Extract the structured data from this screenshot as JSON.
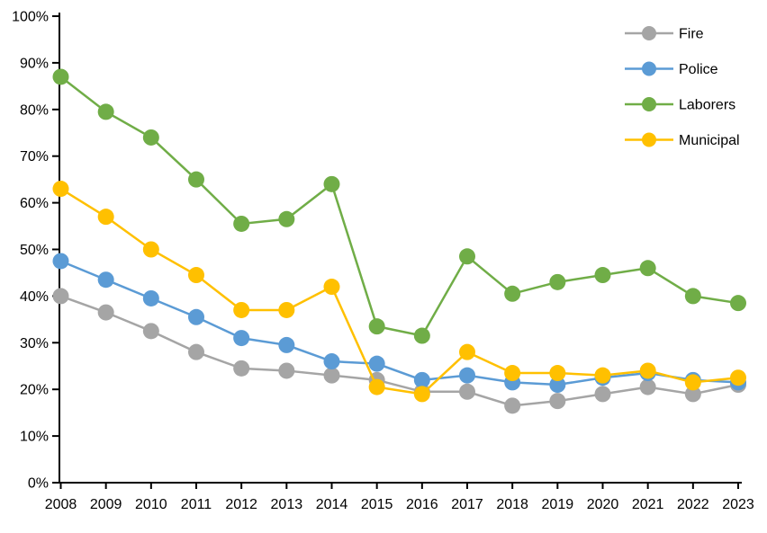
{
  "chart_data": {
    "type": "line",
    "title": "",
    "xlabel": "",
    "ylabel": "",
    "x_categories": [
      "2008",
      "2009",
      "2010",
      "2011",
      "2012",
      "2013",
      "2014",
      "2015",
      "2016",
      "2017",
      "2018",
      "2019",
      "2020",
      "2021",
      "2022",
      "2023"
    ],
    "series": [
      {
        "name": "Fire",
        "color": "#A5A5A5",
        "values": [
          40,
          36.5,
          32.5,
          28,
          24.5,
          24,
          23,
          22,
          19.5,
          19.5,
          16.5,
          17.5,
          19,
          20.5,
          19,
          21
        ]
      },
      {
        "name": "Police",
        "color": "#5B9BD5",
        "values": [
          47.5,
          43.5,
          39.5,
          35.5,
          31,
          29.5,
          26,
          25.5,
          22,
          23,
          21.5,
          21,
          22.5,
          23.5,
          22,
          21.5
        ]
      },
      {
        "name": "Laborers",
        "color": "#70AD47",
        "values": [
          87,
          79.5,
          74,
          65,
          55.5,
          56.5,
          64,
          33.5,
          31.5,
          48.5,
          40.5,
          43,
          44.5,
          46,
          40,
          38.5
        ]
      },
      {
        "name": "Municipal",
        "color": "#FFC000",
        "values": [
          63,
          57,
          50,
          44.5,
          37,
          37,
          42,
          20.5,
          19,
          28,
          23.5,
          23.5,
          23,
          24,
          21.5,
          22.5
        ]
      }
    ],
    "y_axis": {
      "min": 0,
      "max": 100,
      "step": 10,
      "tick_labels": [
        "0%",
        "10%",
        "20%",
        "30%",
        "40%",
        "50%",
        "60%",
        "70%",
        "80%",
        "90%",
        "100%"
      ]
    },
    "legend": {
      "position": "top-right",
      "entries": [
        "Fire",
        "Police",
        "Laborers",
        "Municipal"
      ]
    },
    "grid": false,
    "background_color": "#FFFFFF",
    "axis_color": "#000000"
  }
}
